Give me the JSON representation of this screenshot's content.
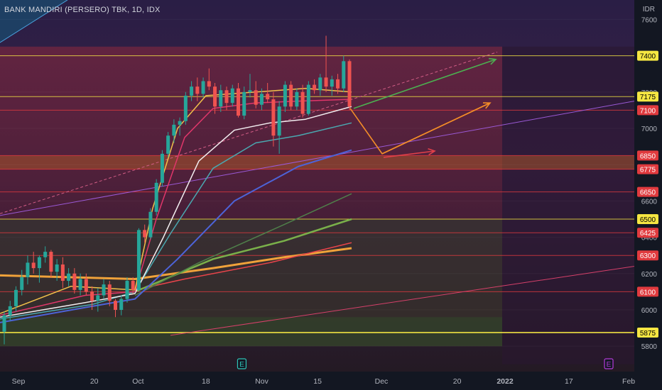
{
  "header": {
    "title": "BANK MANDIRI (PERSERO) TBK, 1D, IDX",
    "currency": "IDR"
  },
  "chart_data": {
    "type": "candlestick",
    "y_ticks": [
      5800,
      6000,
      6200,
      6400,
      6600,
      6800,
      7000,
      7200,
      7400,
      7600
    ],
    "y_tick_labels": [
      "5800",
      "6000",
      "6200",
      "6400",
      "6600",
      "",
      "7000",
      "7200",
      "",
      "7600"
    ],
    "x_ticks": [
      {
        "label": "Sep",
        "date": "2021-09-01"
      },
      {
        "label": "20",
        "date": "2021-09-20"
      },
      {
        "label": "Oct",
        "date": "2021-10-01"
      },
      {
        "label": "18",
        "date": "2021-10-18"
      },
      {
        "label": "Nov",
        "date": "2021-11-01"
      },
      {
        "label": "15",
        "date": "2021-11-15"
      },
      {
        "label": "Dec",
        "date": "2021-12-01"
      },
      {
        "label": "20",
        "date": "2021-12-20"
      },
      {
        "label": "2022",
        "date": "2022-01-01"
      },
      {
        "label": "17",
        "date": "2022-01-17"
      },
      {
        "label": "Feb",
        "date": "2022-02-01"
      }
    ],
    "price_levels": [
      {
        "price": 7400,
        "label": "7400",
        "color": "#f5e642",
        "text": "#000000"
      },
      {
        "price": 7175,
        "label": "7175",
        "color": "#f5e642",
        "text": "#000000"
      },
      {
        "price": 7100,
        "label": "7100",
        "color": "#e03a3e",
        "text": "#ffffff"
      },
      {
        "price": 6850,
        "label": "6850",
        "color": "#e03a3e",
        "text": "#ffffff"
      },
      {
        "price": 6775,
        "label": "6775",
        "color": "#e03a3e",
        "text": "#ffffff"
      },
      {
        "price": 6650,
        "label": "6650",
        "color": "#e03a3e",
        "text": "#ffffff"
      },
      {
        "price": 6500,
        "label": "6500",
        "color": "#f5e642",
        "text": "#000000"
      },
      {
        "price": 6425,
        "label": "6425",
        "color": "#e03a3e",
        "text": "#ffffff"
      },
      {
        "price": 6300,
        "label": "6300",
        "color": "#e03a3e",
        "text": "#ffffff"
      },
      {
        "price": 6100,
        "label": "6100",
        "color": "#e03a3e",
        "text": "#ffffff"
      },
      {
        "price": 5875,
        "label": "5875",
        "color": "#f5e642",
        "text": "#000000"
      }
    ],
    "candles": [
      {
        "o": 5880,
        "h": 5990,
        "l": 5810,
        "c": 5970
      },
      {
        "o": 5970,
        "h": 6050,
        "l": 5940,
        "c": 6020
      },
      {
        "o": 6020,
        "h": 6130,
        "l": 5990,
        "c": 6110
      },
      {
        "o": 6110,
        "h": 6220,
        "l": 6080,
        "c": 6180
      },
      {
        "o": 6180,
        "h": 6300,
        "l": 6140,
        "c": 6260
      },
      {
        "o": 6260,
        "h": 6320,
        "l": 6200,
        "c": 6230
      },
      {
        "o": 6230,
        "h": 6300,
        "l": 6150,
        "c": 6290
      },
      {
        "o": 6290,
        "h": 6350,
        "l": 6260,
        "c": 6320
      },
      {
        "o": 6320,
        "h": 6330,
        "l": 6180,
        "c": 6210
      },
      {
        "o": 6210,
        "h": 6280,
        "l": 6160,
        "c": 6250
      },
      {
        "o": 6250,
        "h": 6290,
        "l": 6120,
        "c": 6160
      },
      {
        "o": 6160,
        "h": 6230,
        "l": 6130,
        "c": 6200
      },
      {
        "o": 6200,
        "h": 6230,
        "l": 6090,
        "c": 6110
      },
      {
        "o": 6110,
        "h": 6200,
        "l": 6080,
        "c": 6170
      },
      {
        "o": 6170,
        "h": 6200,
        "l": 6080,
        "c": 6100
      },
      {
        "o": 6100,
        "h": 6130,
        "l": 6000,
        "c": 6050
      },
      {
        "o": 6050,
        "h": 6120,
        "l": 5990,
        "c": 6080
      },
      {
        "o": 6080,
        "h": 6170,
        "l": 6060,
        "c": 6140
      },
      {
        "o": 6140,
        "h": 6160,
        "l": 6020,
        "c": 6050
      },
      {
        "o": 6050,
        "h": 6060,
        "l": 5960,
        "c": 6000
      },
      {
        "o": 6000,
        "h": 6080,
        "l": 5970,
        "c": 6060
      },
      {
        "o": 6060,
        "h": 6180,
        "l": 6040,
        "c": 6160
      },
      {
        "o": 6160,
        "h": 6180,
        "l": 6090,
        "c": 6110
      },
      {
        "o": 6110,
        "h": 6450,
        "l": 6100,
        "c": 6440
      },
      {
        "o": 6440,
        "h": 6470,
        "l": 6370,
        "c": 6400
      },
      {
        "o": 6400,
        "h": 6560,
        "l": 6390,
        "c": 6540
      },
      {
        "o": 6540,
        "h": 6720,
        "l": 6520,
        "c": 6700
      },
      {
        "o": 6700,
        "h": 6880,
        "l": 6680,
        "c": 6860
      },
      {
        "o": 6860,
        "h": 6980,
        "l": 6840,
        "c": 6960
      },
      {
        "o": 6960,
        "h": 7050,
        "l": 6920,
        "c": 7020
      },
      {
        "o": 7020,
        "h": 7060,
        "l": 6960,
        "c": 7040
      },
      {
        "o": 7040,
        "h": 7200,
        "l": 7020,
        "c": 7180
      },
      {
        "o": 7180,
        "h": 7260,
        "l": 7150,
        "c": 7230
      },
      {
        "o": 7230,
        "h": 7280,
        "l": 7150,
        "c": 7190
      },
      {
        "o": 7190,
        "h": 7280,
        "l": 7170,
        "c": 7260
      },
      {
        "o": 7260,
        "h": 7330,
        "l": 7210,
        "c": 7230
      },
      {
        "o": 7230,
        "h": 7250,
        "l": 7080,
        "c": 7120
      },
      {
        "o": 7120,
        "h": 7240,
        "l": 7090,
        "c": 7210
      },
      {
        "o": 7210,
        "h": 7230,
        "l": 7100,
        "c": 7140
      },
      {
        "o": 7140,
        "h": 7240,
        "l": 7120,
        "c": 7220
      },
      {
        "o": 7220,
        "h": 7250,
        "l": 7060,
        "c": 7070
      },
      {
        "o": 7070,
        "h": 7230,
        "l": 7050,
        "c": 7200
      },
      {
        "o": 7200,
        "h": 7300,
        "l": 7170,
        "c": 7210
      },
      {
        "o": 7210,
        "h": 7260,
        "l": 7110,
        "c": 7130
      },
      {
        "o": 7130,
        "h": 7220,
        "l": 7100,
        "c": 7190
      },
      {
        "o": 7190,
        "h": 7250,
        "l": 7140,
        "c": 7160
      },
      {
        "o": 7160,
        "h": 7200,
        "l": 6900,
        "c": 6960
      },
      {
        "o": 6960,
        "h": 7150,
        "l": 6860,
        "c": 7120
      },
      {
        "o": 7120,
        "h": 7260,
        "l": 7090,
        "c": 7240
      },
      {
        "o": 7240,
        "h": 7260,
        "l": 7100,
        "c": 7120
      },
      {
        "o": 7120,
        "h": 7220,
        "l": 7100,
        "c": 7200
      },
      {
        "o": 7200,
        "h": 7240,
        "l": 7060,
        "c": 7080
      },
      {
        "o": 7080,
        "h": 7260,
        "l": 7070,
        "c": 7240
      },
      {
        "o": 7240,
        "h": 7270,
        "l": 7190,
        "c": 7210
      },
      {
        "o": 7210,
        "h": 7300,
        "l": 7180,
        "c": 7280
      },
      {
        "o": 7280,
        "h": 7510,
        "l": 7200,
        "c": 7230
      },
      {
        "o": 7230,
        "h": 7290,
        "l": 7180,
        "c": 7270
      },
      {
        "o": 7270,
        "h": 7300,
        "l": 7190,
        "c": 7220
      },
      {
        "o": 7220,
        "h": 7400,
        "l": 7200,
        "c": 7370
      },
      {
        "o": 7370,
        "h": 7380,
        "l": 7100,
        "c": 7120
      }
    ]
  },
  "colors": {
    "background": "#131722",
    "up": "#26a69a",
    "down": "#ef5350",
    "axis_text": "#b2b5be",
    "icon_event": "#2ec4b6",
    "icon_earnings": "#b43ad9"
  },
  "event_markers": [
    {
      "letter": "E",
      "date": "2021-10-27",
      "color_key": "icon_event"
    },
    {
      "letter": "E",
      "date": "2022-01-27",
      "color_key": "icon_earnings"
    }
  ]
}
